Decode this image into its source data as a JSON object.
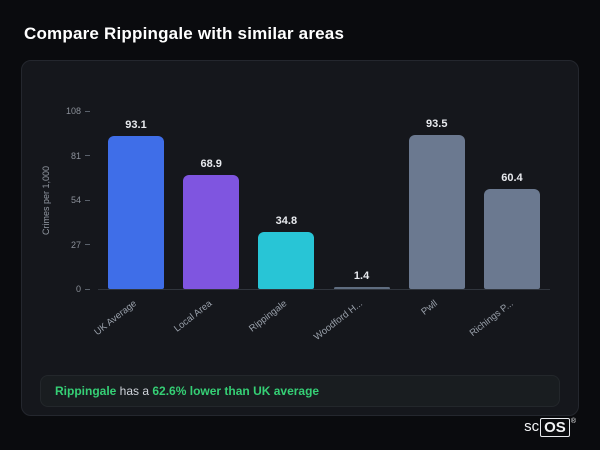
{
  "page": {
    "title": "Compare Rippingale with similar areas"
  },
  "chart_data": {
    "type": "bar",
    "categories": [
      "UK Average",
      "Local Area",
      "Rippingale",
      "Woodford H...",
      "Pwll",
      "Richings P..."
    ],
    "values": [
      93.1,
      68.9,
      34.8,
      1.4,
      93.5,
      60.4
    ],
    "bar_colors": [
      "#3f6ee8",
      "#7f55e0",
      "#28c5d6",
      "#5f6d80",
      "#6b7990",
      "#6b7990"
    ],
    "title": "",
    "xlabel": "",
    "ylabel": "Crimes per 1,000",
    "yticks": [
      0,
      27,
      54,
      81,
      108
    ],
    "ylim": [
      0,
      108
    ],
    "grid": false,
    "legend": "none",
    "value_label_color": "#e8eaee",
    "accent_green": "#35cf75"
  },
  "note": {
    "area": "Rippingale",
    "middle": " has a ",
    "highlight": "62.6% lower than UK average"
  },
  "logo": {
    "prefix": "sc",
    "suffix": "OS",
    "registered": "®"
  }
}
